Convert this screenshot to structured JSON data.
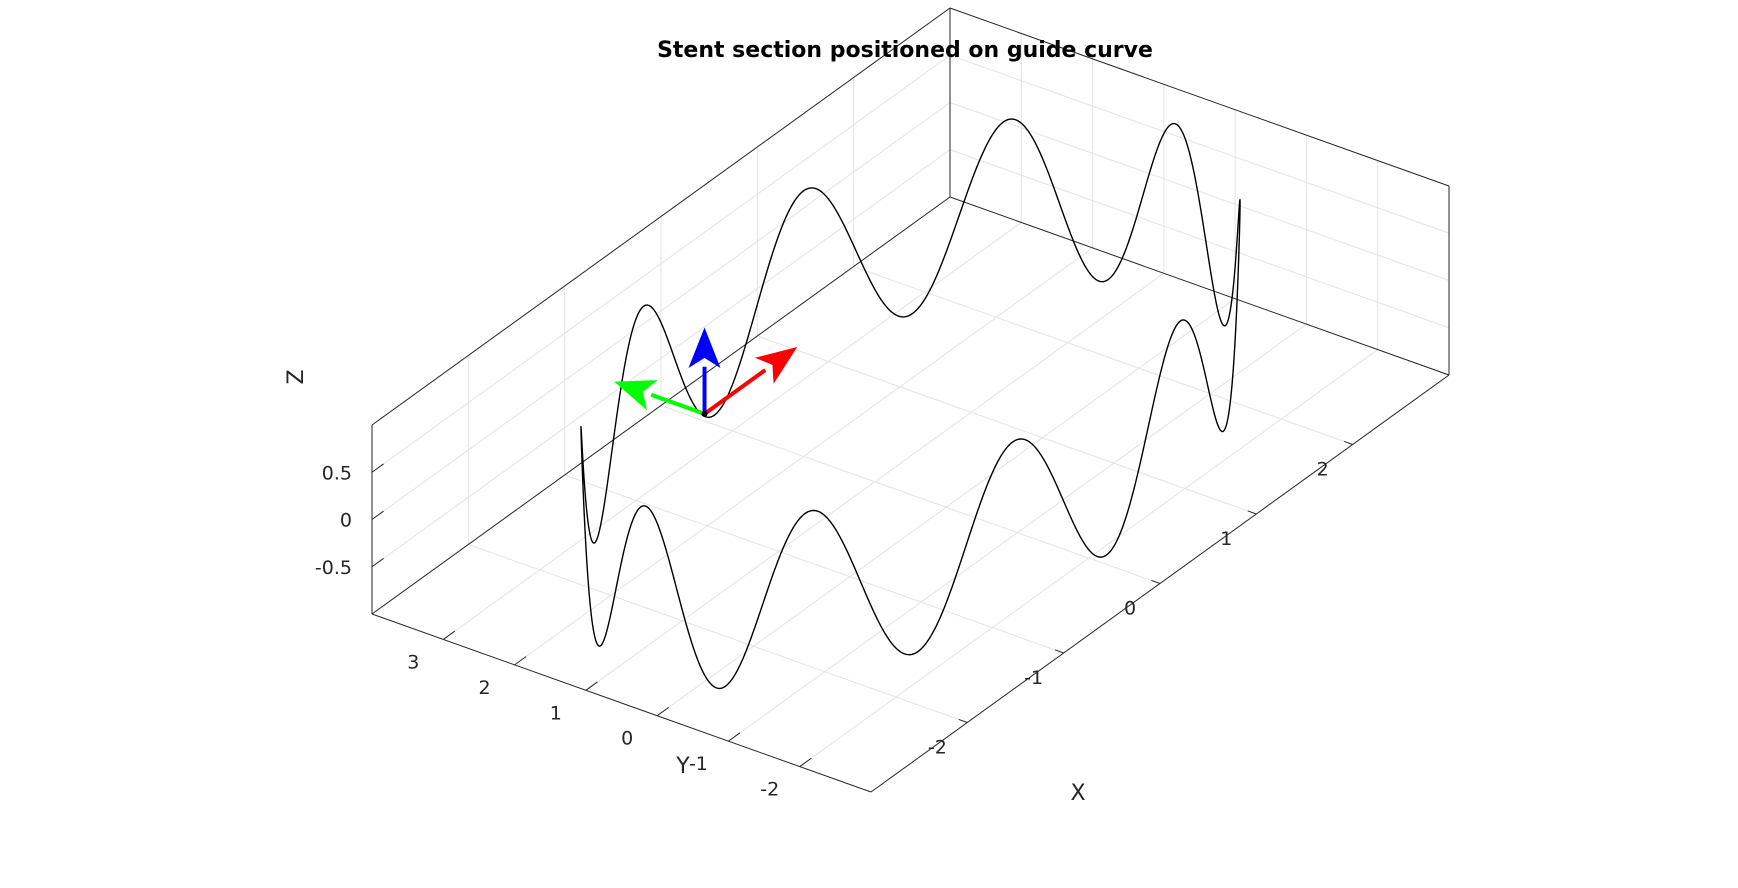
{
  "chart_data": {
    "type": "line",
    "title": "Stent section positioned on guide curve",
    "xlabel": "X",
    "ylabel": "Y",
    "zlabel": "Z",
    "xlim": [
      -3,
      3
    ],
    "ylim": [
      -3,
      4
    ],
    "zlim": [
      -1,
      1
    ],
    "xticks": [
      -2,
      -1,
      0,
      1,
      2
    ],
    "yticks": [
      -2,
      -1,
      0,
      1,
      2,
      3
    ],
    "zticks": [
      -0.5,
      0,
      0.5
    ],
    "xtick_labels": [
      "-2",
      "-1",
      "0",
      "1",
      "2"
    ],
    "ytick_labels": [
      "-2",
      "-1",
      "0",
      "1",
      "2",
      "3"
    ],
    "ztick_labels": [
      "-0.5",
      "0",
      "0.5"
    ],
    "grid": true,
    "box": true,
    "series": [
      {
        "color": "#000000",
        "curve": {
          "kind": "sinusoidal ring",
          "center_x": 0,
          "center_y": 0.5,
          "radius": 2.75,
          "z_amplitude": 0.9,
          "z_cycles": 10
        }
      }
    ],
    "frame": {
      "origin": [
        -1.25,
        1.7,
        0.45
      ],
      "arrows": [
        {
          "axis": "tangent",
          "color": "#ff0000",
          "vector": [
            0.95,
            0,
            0
          ]
        },
        {
          "axis": "normal",
          "color": "#00ff00",
          "vector": [
            0,
            1.25,
            0
          ]
        },
        {
          "axis": "binormal",
          "color": "#0000ff",
          "vector": [
            0,
            0,
            0.9
          ]
        }
      ]
    }
  }
}
